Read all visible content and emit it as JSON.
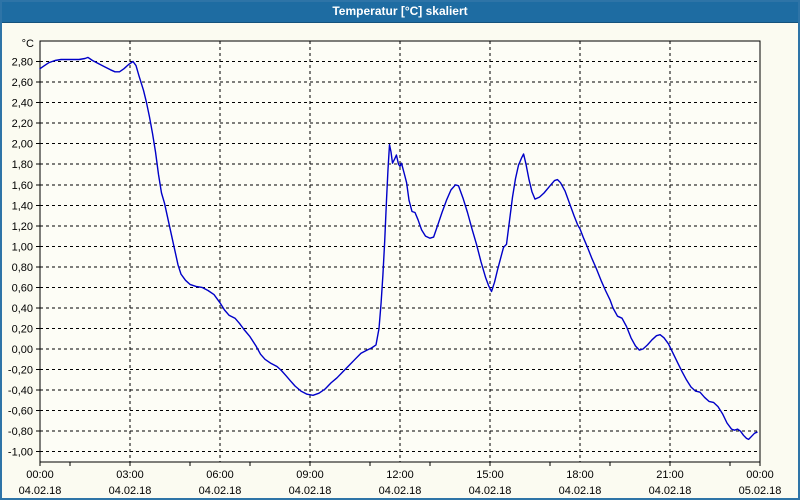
{
  "window": {
    "title": "Temperatur [°C] skaliert"
  },
  "colors": {
    "title_bar": "#1E6CA2",
    "frame": "#2E74A7",
    "background": "#FBFBF1",
    "plot_background": "#FDFDF6",
    "grid": "#000000",
    "axis": "#000000",
    "label": "#000000",
    "line": "#0000C8"
  },
  "chart_data": {
    "type": "line",
    "title": "Temperatur [°C] skaliert",
    "unit_label": "°C",
    "xlabel": "",
    "ylabel": "°C",
    "xlim_hours": [
      0,
      24
    ],
    "ylim": [
      -1.1,
      3.0
    ],
    "grid": "dashed",
    "legend": "none",
    "y_ticks": [
      {
        "value": 2.8,
        "label": "2,80"
      },
      {
        "value": 2.6,
        "label": "2,60"
      },
      {
        "value": 2.4,
        "label": "2,40"
      },
      {
        "value": 2.2,
        "label": "2,20"
      },
      {
        "value": 2.0,
        "label": "2,00"
      },
      {
        "value": 1.8,
        "label": "1,80"
      },
      {
        "value": 1.6,
        "label": "1,60"
      },
      {
        "value": 1.4,
        "label": "1,40"
      },
      {
        "value": 1.2,
        "label": "1,20"
      },
      {
        "value": 1.0,
        "label": "1,00"
      },
      {
        "value": 0.8,
        "label": "0,80"
      },
      {
        "value": 0.6,
        "label": "0,60"
      },
      {
        "value": 0.4,
        "label": "0,40"
      },
      {
        "value": 0.2,
        "label": "0,20"
      },
      {
        "value": 0.0,
        "label": "0,00"
      },
      {
        "value": -0.2,
        "label": "-0,20"
      },
      {
        "value": -0.4,
        "label": "-0,40"
      },
      {
        "value": -0.6,
        "label": "-0,60"
      },
      {
        "value": -0.8,
        "label": "-0,80"
      },
      {
        "value": -1.0,
        "label": "-1,00"
      }
    ],
    "x_ticks": [
      {
        "hour": 0,
        "time": "00:00",
        "date": "04.02.18"
      },
      {
        "hour": 3,
        "time": "03:00",
        "date": "04.02.18"
      },
      {
        "hour": 6,
        "time": "06:00",
        "date": "04.02.18"
      },
      {
        "hour": 9,
        "time": "09:00",
        "date": "04.02.18"
      },
      {
        "hour": 12,
        "time": "12:00",
        "date": "04.02.18"
      },
      {
        "hour": 15,
        "time": "15:00",
        "date": "04.02.18"
      },
      {
        "hour": 18,
        "time": "18:00",
        "date": "04.02.18"
      },
      {
        "hour": 21,
        "time": "21:00",
        "date": "04.02.18"
      },
      {
        "hour": 24,
        "time": "00:00",
        "date": "05.02.18"
      }
    ],
    "x_gridline_hours": [
      3,
      6,
      9,
      12,
      15,
      18,
      21
    ],
    "x_minor_tick_hours": [
      0,
      1,
      3,
      5,
      7,
      9,
      11,
      13,
      15,
      17,
      19,
      21,
      23,
      24
    ],
    "series": [
      {
        "name": "Temperatur [°C]",
        "color": "#0000C8",
        "points": [
          [
            0,
            2.73
          ],
          [
            0.15,
            2.76
          ],
          [
            0.3,
            2.79
          ],
          [
            0.5,
            2.81
          ],
          [
            0.7,
            2.82
          ],
          [
            0.9,
            2.82
          ],
          [
            1.1,
            2.82
          ],
          [
            1.3,
            2.82
          ],
          [
            1.5,
            2.83
          ],
          [
            1.6,
            2.84
          ],
          [
            1.75,
            2.81
          ],
          [
            1.95,
            2.78
          ],
          [
            2.15,
            2.75
          ],
          [
            2.35,
            2.72
          ],
          [
            2.5,
            2.7
          ],
          [
            2.65,
            2.7
          ],
          [
            2.8,
            2.73
          ],
          [
            2.95,
            2.77
          ],
          [
            3.1,
            2.8
          ],
          [
            3.2,
            2.76
          ],
          [
            3.3,
            2.66
          ],
          [
            3.45,
            2.52
          ],
          [
            3.55,
            2.4
          ],
          [
            3.65,
            2.26
          ],
          [
            3.75,
            2.1
          ],
          [
            3.85,
            1.92
          ],
          [
            3.95,
            1.7
          ],
          [
            4.05,
            1.52
          ],
          [
            4.15,
            1.42
          ],
          [
            4.3,
            1.22
          ],
          [
            4.45,
            1.02
          ],
          [
            4.6,
            0.82
          ],
          [
            4.7,
            0.73
          ],
          [
            4.85,
            0.67
          ],
          [
            5,
            0.63
          ],
          [
            5.2,
            0.61
          ],
          [
            5.4,
            0.6
          ],
          [
            5.6,
            0.57
          ],
          [
            5.8,
            0.53
          ],
          [
            6,
            0.45
          ],
          [
            6.15,
            0.38
          ],
          [
            6.3,
            0.33
          ],
          [
            6.5,
            0.3
          ],
          [
            6.65,
            0.25
          ],
          [
            6.8,
            0.19
          ],
          [
            7,
            0.12
          ],
          [
            7.2,
            0.03
          ],
          [
            7.35,
            -0.05
          ],
          [
            7.5,
            -0.1
          ],
          [
            7.7,
            -0.14
          ],
          [
            7.9,
            -0.17
          ],
          [
            8.05,
            -0.21
          ],
          [
            8.2,
            -0.26
          ],
          [
            8.35,
            -0.31
          ],
          [
            8.5,
            -0.36
          ],
          [
            8.7,
            -0.41
          ],
          [
            8.9,
            -0.44
          ],
          [
            9.1,
            -0.45
          ],
          [
            9.3,
            -0.43
          ],
          [
            9.5,
            -0.39
          ],
          [
            9.7,
            -0.33
          ],
          [
            9.9,
            -0.28
          ],
          [
            10.1,
            -0.22
          ],
          [
            10.3,
            -0.16
          ],
          [
            10.5,
            -0.1
          ],
          [
            10.7,
            -0.04
          ],
          [
            10.9,
            -0.01
          ],
          [
            11.05,
            0.01
          ],
          [
            11.2,
            0.04
          ],
          [
            11.3,
            0.2
          ],
          [
            11.37,
            0.45
          ],
          [
            11.43,
            0.72
          ],
          [
            11.49,
            1.05
          ],
          [
            11.55,
            1.45
          ],
          [
            11.6,
            1.75
          ],
          [
            11.65,
            1.99
          ],
          [
            11.7,
            1.92
          ],
          [
            11.75,
            1.81
          ],
          [
            11.82,
            1.85
          ],
          [
            11.88,
            1.89
          ],
          [
            11.95,
            1.8
          ],
          [
            12,
            1.78
          ],
          [
            12.05,
            1.81
          ],
          [
            12.15,
            1.7
          ],
          [
            12.22,
            1.62
          ],
          [
            12.3,
            1.45
          ],
          [
            12.4,
            1.34
          ],
          [
            12.5,
            1.33
          ],
          [
            12.6,
            1.26
          ],
          [
            12.72,
            1.16
          ],
          [
            12.85,
            1.1
          ],
          [
            13,
            1.08
          ],
          [
            13.12,
            1.09
          ],
          [
            13.25,
            1.2
          ],
          [
            13.4,
            1.33
          ],
          [
            13.55,
            1.45
          ],
          [
            13.7,
            1.55
          ],
          [
            13.85,
            1.6
          ],
          [
            13.95,
            1.59
          ],
          [
            14.1,
            1.47
          ],
          [
            14.25,
            1.33
          ],
          [
            14.4,
            1.17
          ],
          [
            14.55,
            1.02
          ],
          [
            14.7,
            0.85
          ],
          [
            14.85,
            0.7
          ],
          [
            14.95,
            0.62
          ],
          [
            15.05,
            0.56
          ],
          [
            15.15,
            0.65
          ],
          [
            15.25,
            0.77
          ],
          [
            15.35,
            0.88
          ],
          [
            15.45,
            0.99
          ],
          [
            15.55,
            1.02
          ],
          [
            15.65,
            1.25
          ],
          [
            15.75,
            1.48
          ],
          [
            15.85,
            1.66
          ],
          [
            15.95,
            1.79
          ],
          [
            16.05,
            1.86
          ],
          [
            16.12,
            1.9
          ],
          [
            16.2,
            1.8
          ],
          [
            16.3,
            1.65
          ],
          [
            16.4,
            1.53
          ],
          [
            16.5,
            1.46
          ],
          [
            16.65,
            1.48
          ],
          [
            16.8,
            1.52
          ],
          [
            17,
            1.59
          ],
          [
            17.15,
            1.64
          ],
          [
            17.25,
            1.65
          ],
          [
            17.35,
            1.62
          ],
          [
            17.5,
            1.54
          ],
          [
            17.65,
            1.42
          ],
          [
            17.8,
            1.3
          ],
          [
            17.92,
            1.21
          ],
          [
            18,
            1.17
          ],
          [
            18.12,
            1.08
          ],
          [
            18.25,
            0.99
          ],
          [
            18.4,
            0.88
          ],
          [
            18.55,
            0.78
          ],
          [
            18.7,
            0.67
          ],
          [
            18.85,
            0.57
          ],
          [
            19,
            0.48
          ],
          [
            19.1,
            0.4
          ],
          [
            19.25,
            0.32
          ],
          [
            19.4,
            0.3
          ],
          [
            19.55,
            0.22
          ],
          [
            19.7,
            0.11
          ],
          [
            19.85,
            0.03
          ],
          [
            19.98,
            -0.01
          ],
          [
            20.1,
            0
          ],
          [
            20.25,
            0.04
          ],
          [
            20.4,
            0.09
          ],
          [
            20.55,
            0.13
          ],
          [
            20.67,
            0.14
          ],
          [
            20.8,
            0.11
          ],
          [
            20.95,
            0.05
          ],
          [
            21.1,
            -0.04
          ],
          [
            21.25,
            -0.13
          ],
          [
            21.4,
            -0.22
          ],
          [
            21.55,
            -0.3
          ],
          [
            21.7,
            -0.37
          ],
          [
            21.85,
            -0.41
          ],
          [
            22,
            -0.42
          ],
          [
            22.15,
            -0.47
          ],
          [
            22.3,
            -0.51
          ],
          [
            22.45,
            -0.52
          ],
          [
            22.6,
            -0.56
          ],
          [
            22.75,
            -0.63
          ],
          [
            22.9,
            -0.72
          ],
          [
            23.05,
            -0.78
          ],
          [
            23.15,
            -0.79
          ],
          [
            23.25,
            -0.78
          ],
          [
            23.35,
            -0.8
          ],
          [
            23.45,
            -0.84
          ],
          [
            23.55,
            -0.87
          ],
          [
            23.62,
            -0.88
          ],
          [
            23.72,
            -0.85
          ],
          [
            23.82,
            -0.82
          ],
          [
            23.9,
            -0.81
          ]
        ]
      }
    ]
  }
}
